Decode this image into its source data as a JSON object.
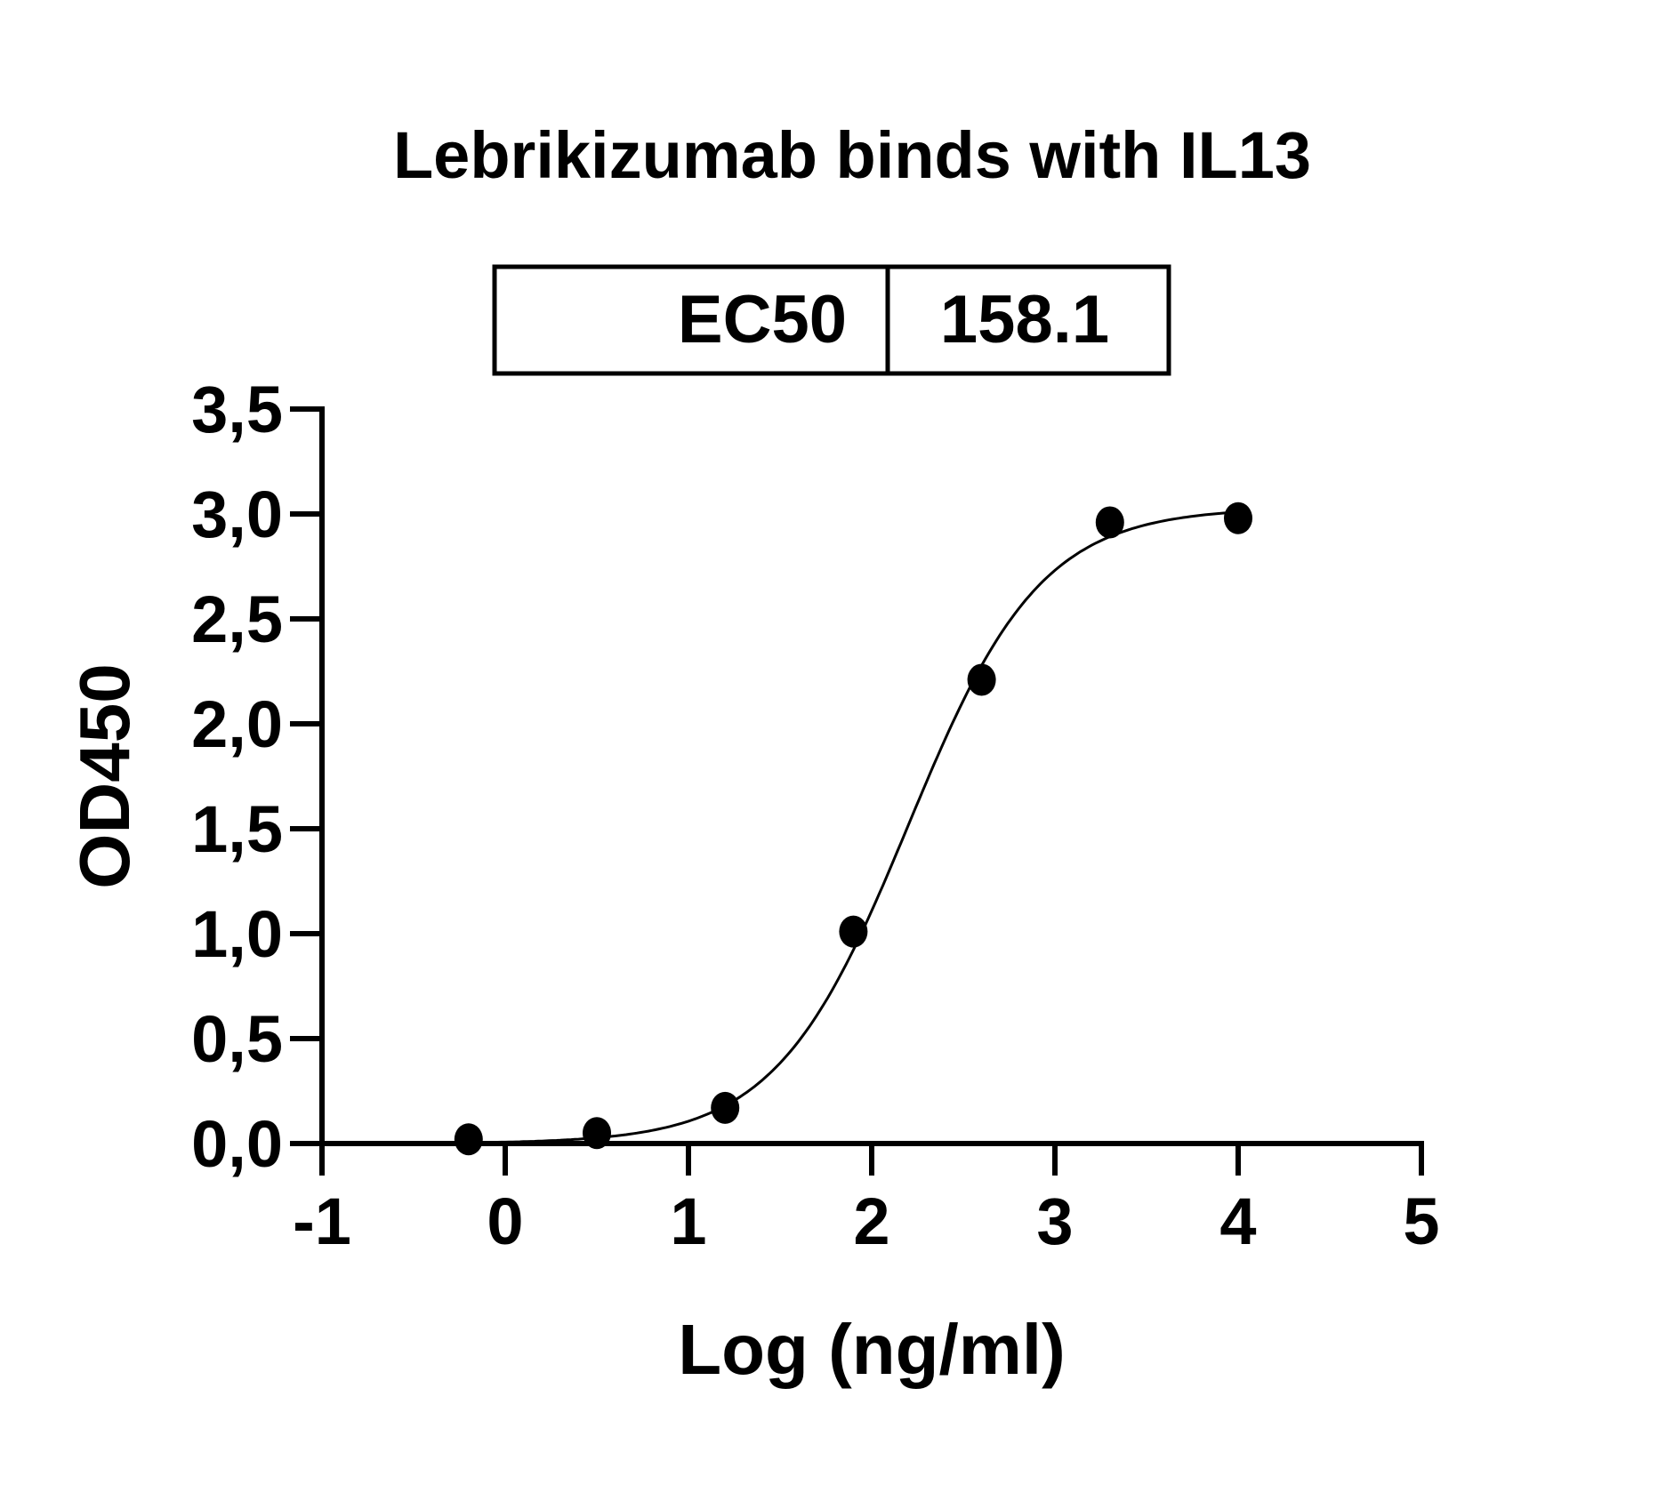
{
  "chart_data": {
    "type": "scatter",
    "title": "Lebrikizumab binds with IL13",
    "xlabel": "Log (ng/ml)",
    "ylabel": "OD450",
    "xlim": [
      -1,
      5
    ],
    "ylim": [
      0,
      3.5
    ],
    "x_ticks": [
      "-1",
      "0",
      "1",
      "2",
      "3",
      "4",
      "5"
    ],
    "y_ticks": [
      "0,0",
      "0,5",
      "1,0",
      "1,5",
      "2,0",
      "2,5",
      "3,0",
      "3,5"
    ],
    "grid": false,
    "points": {
      "x": [
        -0.2,
        0.5,
        1.2,
        1.9,
        2.6,
        3.3,
        4.0
      ],
      "y": [
        0.02,
        0.05,
        0.17,
        1.01,
        2.21,
        2.96,
        2.98
      ]
    },
    "fit": {
      "model": "4PL sigmoidal",
      "bottom": 0,
      "top": 3.03,
      "hill": 1.2
    },
    "ec50_table": {
      "label": "EC50",
      "value": "158.1"
    },
    "colors": {
      "marks": "#000000"
    }
  }
}
